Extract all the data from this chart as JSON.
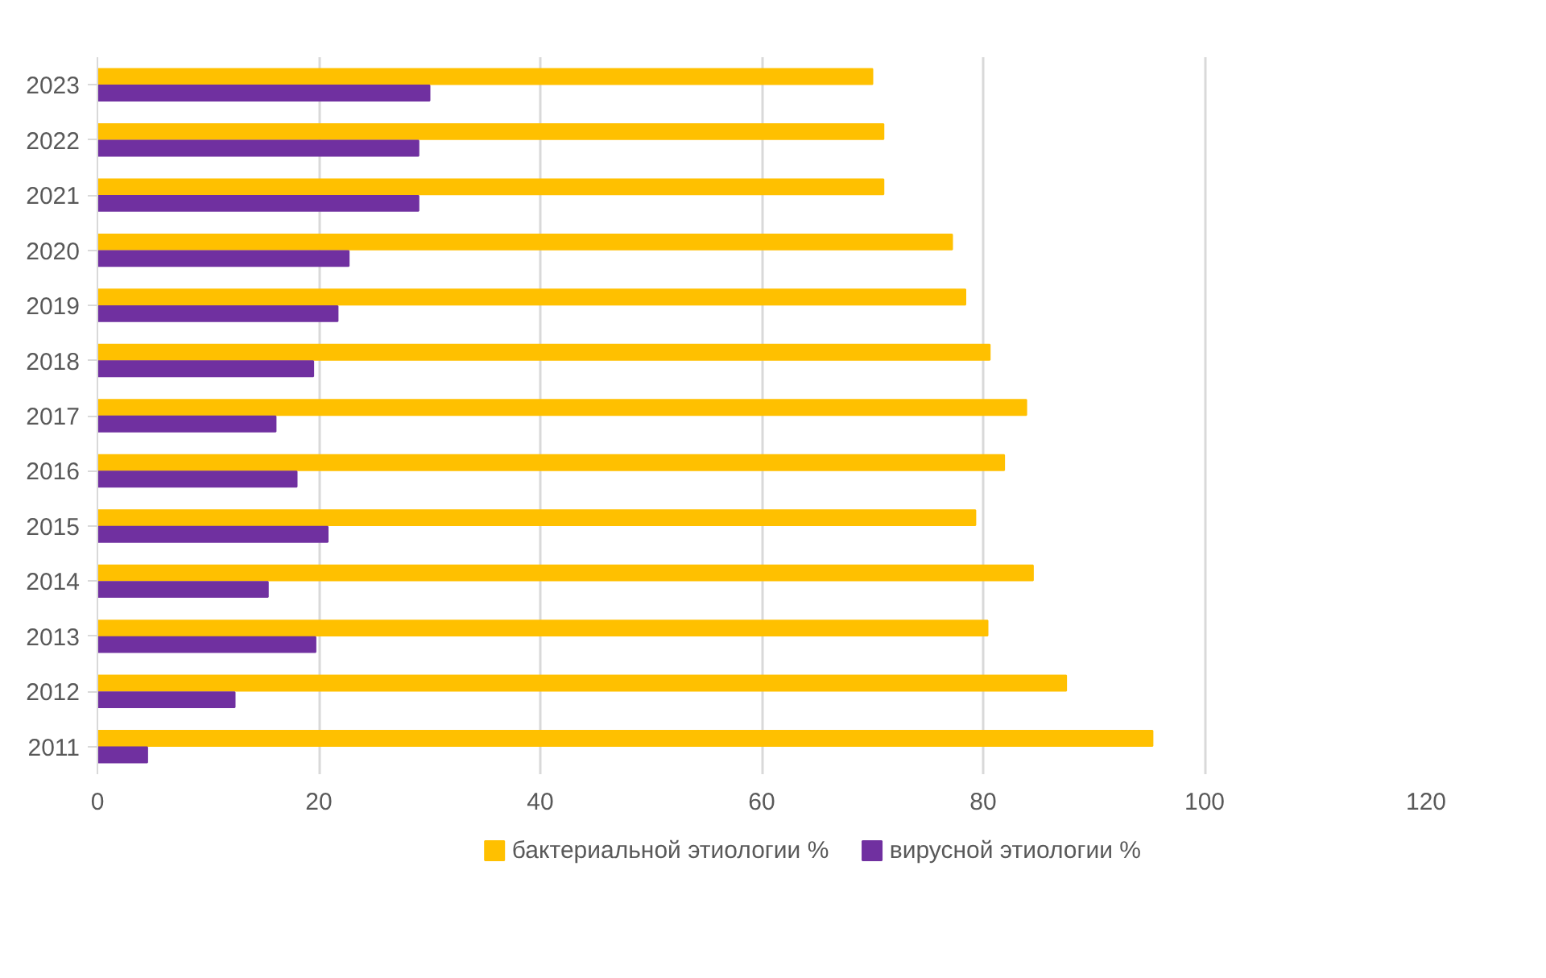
{
  "chart_data": {
    "type": "bar",
    "orientation": "horizontal",
    "categories": [
      "2023",
      "2022",
      "2021",
      "2020",
      "2019",
      "2018",
      "2017",
      "2016",
      "2015",
      "2014",
      "2013",
      "2012",
      "2011"
    ],
    "series": [
      {
        "name": "бактериальной этиологии %",
        "color": "#ffc000",
        "values": [
          70,
          71,
          71,
          77.2,
          78.4,
          80.6,
          83.9,
          81.9,
          79.3,
          84.5,
          80.4,
          87.5,
          95.3
        ]
      },
      {
        "name": "вирусной этиологии %",
        "color": "#7030a0",
        "values": [
          30,
          29,
          29,
          22.7,
          21.7,
          19.5,
          16.1,
          18,
          20.8,
          15.4,
          19.7,
          12.4,
          4.5
        ]
      }
    ],
    "xlim": [
      0,
      120
    ],
    "xticks": [
      0,
      20,
      40,
      60,
      80,
      100,
      120
    ],
    "grid": "x",
    "legend": "bottom"
  }
}
